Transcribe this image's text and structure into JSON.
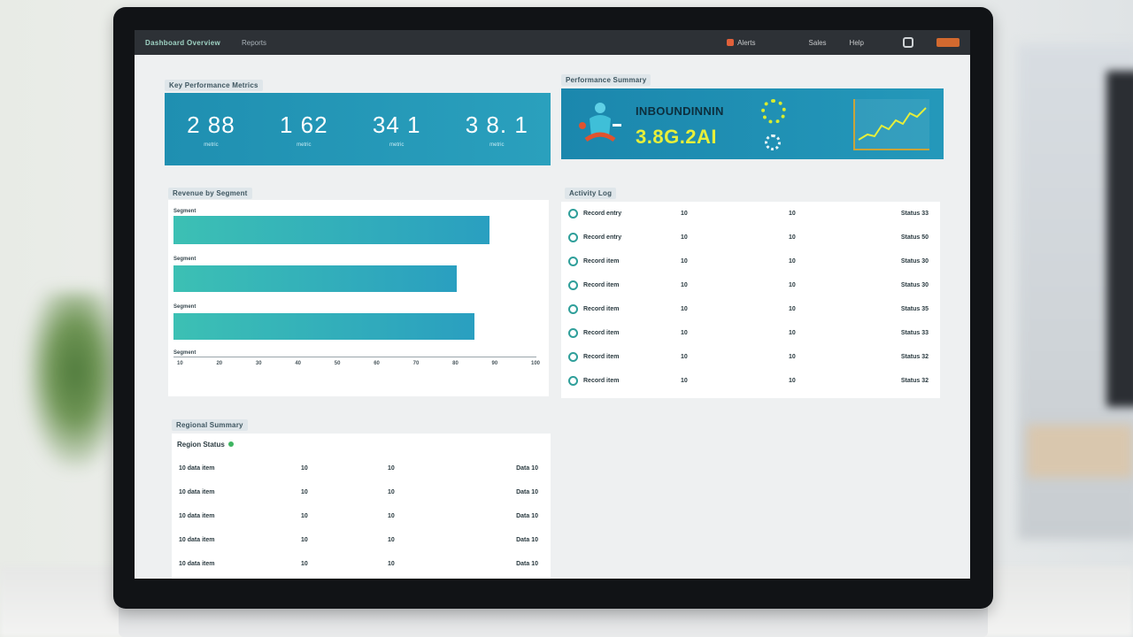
{
  "topbar": {
    "app_title": "Dashboard Overview",
    "nav_link": "Reports",
    "alert_label": "Alerts",
    "item1": "Sales",
    "item2": "Help"
  },
  "kpis": {
    "section_label": "Key Performance Metrics",
    "items": [
      {
        "value": "2 88",
        "sub": "metric"
      },
      {
        "value": "1 62",
        "sub": "metric"
      },
      {
        "value": "34 1",
        "sub": "metric"
      },
      {
        "value": "3 8. 1",
        "sub": "metric"
      }
    ]
  },
  "promo": {
    "section_label": "Performance Summary",
    "heading": "INBOUNDINNIN",
    "value": "3.8G.2AI"
  },
  "bars": {
    "section_label": "Revenue by Segment",
    "items": [
      {
        "label": "Segment",
        "value": 0.87
      },
      {
        "label": "Segment",
        "value": 0.78
      },
      {
        "label": "Segment",
        "value": 0.83
      },
      {
        "label": "Segment",
        "value": 0
      }
    ],
    "ticks": [
      "10",
      "20",
      "30",
      "40",
      "50",
      "60",
      "70",
      "80",
      "90",
      "100"
    ]
  },
  "table": {
    "section_label": "Activity Log",
    "rows": [
      {
        "name": "Record entry",
        "c1": "10",
        "c2": "10",
        "c3": "Status 33"
      },
      {
        "name": "Record entry",
        "c1": "10",
        "c2": "10",
        "c3": "Status 50"
      },
      {
        "name": "Record item",
        "c1": "10",
        "c2": "10",
        "c3": "Status 30"
      },
      {
        "name": "Record item",
        "c1": "10",
        "c2": "10",
        "c3": "Status 30"
      },
      {
        "name": "Record item",
        "c1": "10",
        "c2": "10",
        "c3": "Status 35"
      },
      {
        "name": "Record item",
        "c1": "10",
        "c2": "10",
        "c3": "Status 33"
      },
      {
        "name": "Record item",
        "c1": "10",
        "c2": "10",
        "c3": "Status 32"
      },
      {
        "name": "Record item",
        "c1": "10",
        "c2": "10",
        "c3": "Status 32"
      }
    ]
  },
  "bottom": {
    "section_label": "Regional Summary",
    "subheading": "Region Status",
    "rows": [
      {
        "name": "10 data item",
        "c1": "10",
        "c2": "10",
        "c3": "Data 10"
      },
      {
        "name": "10 data item",
        "c1": "10",
        "c2": "10",
        "c3": "Data 10"
      },
      {
        "name": "10 data item",
        "c1": "10",
        "c2": "10",
        "c3": "Data 10"
      },
      {
        "name": "10 data item",
        "c1": "10",
        "c2": "10",
        "c3": "Data 10"
      },
      {
        "name": "10 data item",
        "c1": "10",
        "c2": "10",
        "c3": "Data 10"
      }
    ]
  },
  "colors": {
    "accent": "#1f8fb1",
    "bar_start": "#3cc0b4",
    "bar_end": "#2a9fc0",
    "highlight": "#e6ef3a"
  }
}
